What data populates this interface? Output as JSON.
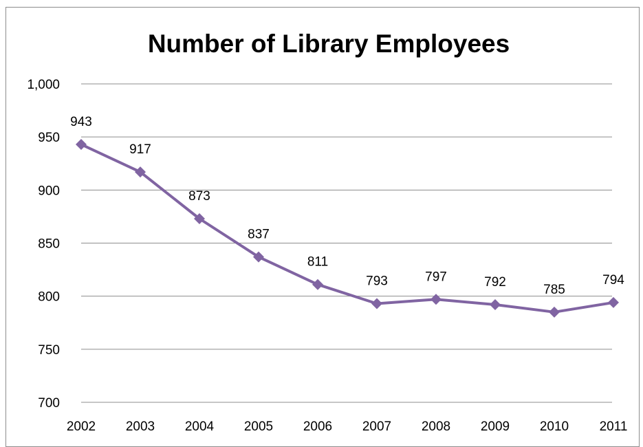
{
  "chart_data": {
    "type": "line",
    "title": "Number of  Library Employees",
    "xlabel": "",
    "ylabel": "",
    "categories": [
      "2002",
      "2003",
      "2004",
      "2005",
      "2006",
      "2007",
      "2008",
      "2009",
      "2010",
      "2011"
    ],
    "series": [
      {
        "values": [
          943,
          917,
          873,
          837,
          811,
          793,
          797,
          792,
          785,
          794
        ],
        "data_labels": [
          "943",
          "917",
          "873",
          "837",
          "811",
          "793",
          "797",
          "792",
          "785",
          "794"
        ],
        "color": "#8064a2",
        "marker": "diamond"
      }
    ],
    "ylim": [
      700,
      1000
    ],
    "y_ticks": [
      700,
      750,
      800,
      850,
      900,
      950,
      1000
    ],
    "y_tick_labels": [
      "700",
      "750",
      "800",
      "850",
      "900",
      "950",
      "1,000"
    ],
    "grid": "horizontal",
    "legend": "none"
  }
}
